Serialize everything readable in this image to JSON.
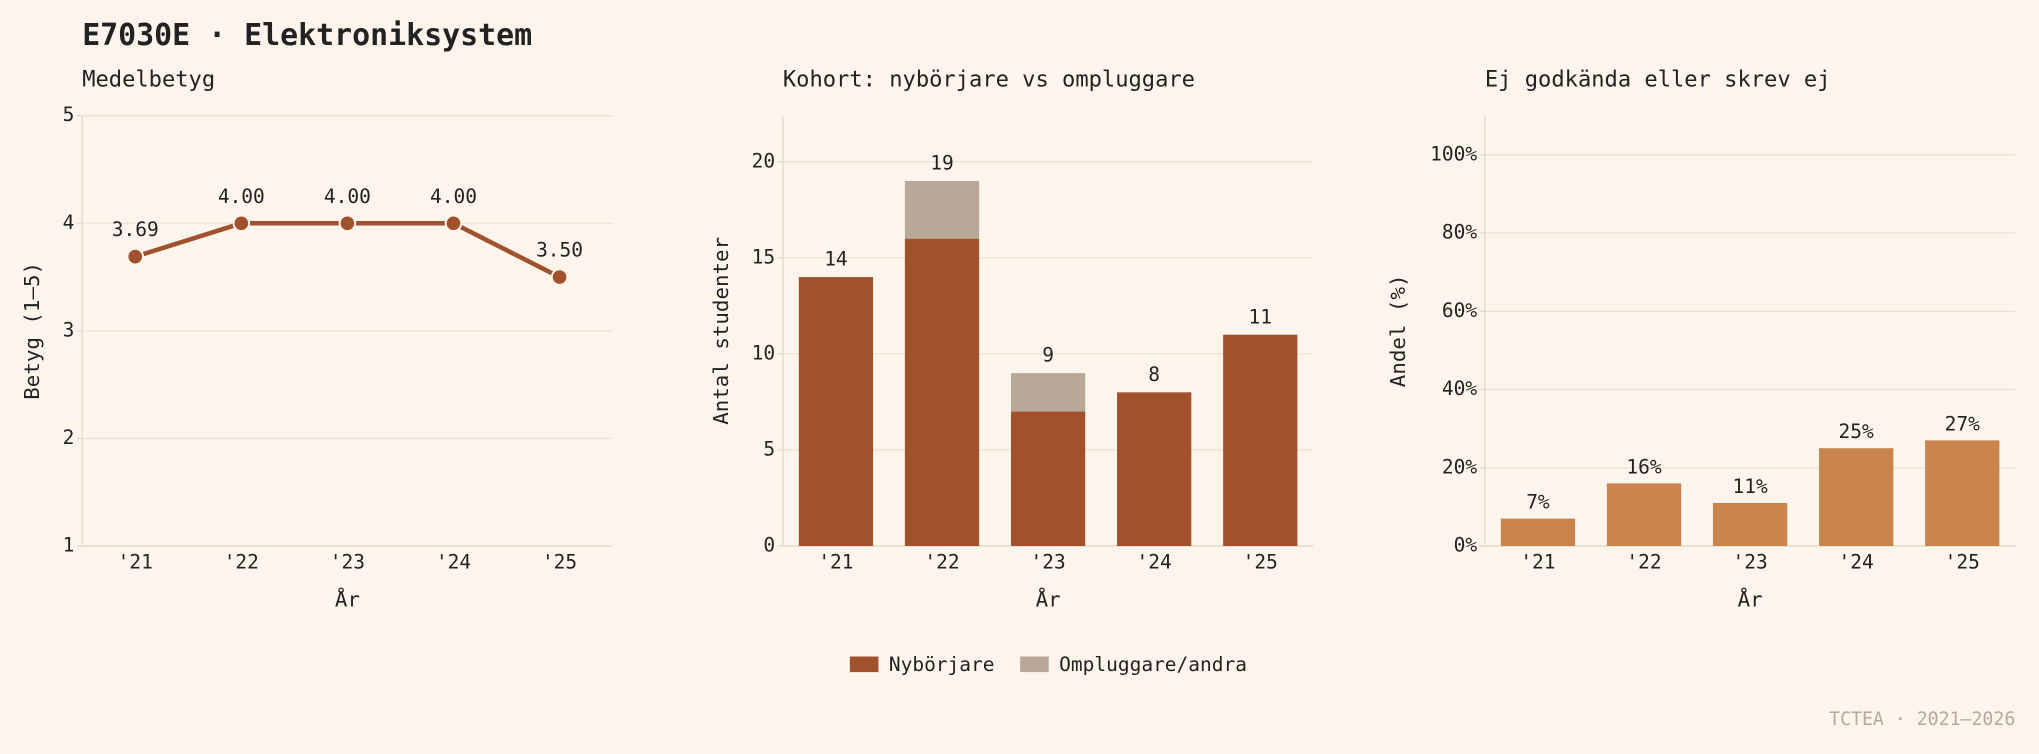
{
  "title": "E7030E · Elektroniksystem",
  "footer": "TCTEA · 2021–2026",
  "chart_data": [
    {
      "type": "line",
      "title": "Medelbetyg",
      "xlabel": "År",
      "ylabel": "Betyg (1–5)",
      "categories": [
        "'21",
        "'22",
        "'23",
        "'24",
        "'25"
      ],
      "values": [
        3.69,
        4.0,
        4.0,
        4.0,
        3.5
      ],
      "value_labels": [
        "3.69",
        "4.00",
        "4.00",
        "4.00",
        "3.50"
      ],
      "color": "#a0522d",
      "ylim": [
        1,
        5
      ],
      "yticks": [
        1,
        2,
        3,
        4,
        5
      ],
      "grid": true
    },
    {
      "type": "stacked_bar",
      "title": "Kohort: nybörjare vs ompluggare",
      "xlabel": "År",
      "ylabel": "Antal studenter",
      "categories": [
        "'21",
        "'22",
        "'23",
        "'24",
        "'25"
      ],
      "series": [
        {
          "name": "Nybörjare",
          "color": "#a0522d",
          "values": [
            14,
            16,
            7,
            8,
            11
          ]
        },
        {
          "name": "Ompluggare/andra",
          "color": "#b8a898",
          "values": [
            0,
            3,
            2,
            0,
            0
          ]
        }
      ],
      "totals": [
        14,
        19,
        9,
        8,
        11
      ],
      "ylim": [
        0,
        22.4
      ],
      "yticks": [
        0,
        5,
        10,
        15,
        20
      ],
      "grid": true,
      "legend": "bottom"
    },
    {
      "type": "bar",
      "title": "Ej godkända eller skrev ej",
      "xlabel": "År",
      "ylabel": "Andel (%)",
      "categories": [
        "'21",
        "'22",
        "'23",
        "'24",
        "'25"
      ],
      "values": [
        7,
        16,
        11,
        25,
        27
      ],
      "value_labels": [
        "7%",
        "16%",
        "11%",
        "25%",
        "27%"
      ],
      "color": "#c8844c",
      "ylim": [
        0,
        110
      ],
      "yticks": [
        {
          "value": 0,
          "label": "0%"
        },
        {
          "value": 20,
          "label": "20%"
        },
        {
          "value": 40,
          "label": "40%"
        },
        {
          "value": 60,
          "label": "60%"
        },
        {
          "value": 80,
          "label": "80%"
        },
        {
          "value": 100,
          "label": "100%"
        }
      ],
      "grid": true
    }
  ]
}
